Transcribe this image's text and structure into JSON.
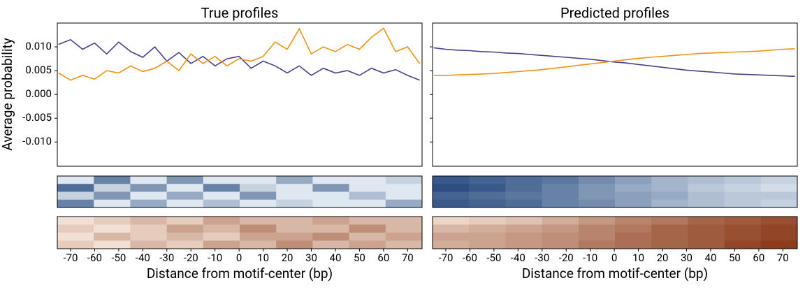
{
  "chart_data": [
    {
      "type": "line",
      "title": "True profiles",
      "ylabel": "Average probability",
      "xlabel": "Distance from motif-center (bp)",
      "xlim": [
        -75.5,
        76
      ],
      "xticks": [
        -70,
        -60,
        -50,
        -40,
        -30,
        -20,
        -10,
        0,
        10,
        20,
        30,
        40,
        50,
        60,
        70
      ],
      "ylim": [
        -0.0151,
        0.015
      ],
      "yticks": [
        {
          "value": -0.01,
          "label": "-0.010"
        },
        {
          "value": -0.005,
          "label": "-0.005"
        },
        {
          "value": 0,
          "label": "0.000"
        },
        {
          "value": 0.005,
          "label": "0.005"
        },
        {
          "value": 0.01,
          "label": "0.010"
        }
      ],
      "x": [
        -75,
        -70,
        -65,
        -60,
        -55,
        -50,
        -45,
        -40,
        -35,
        -30,
        -25,
        -20,
        -15,
        -10,
        -5,
        0,
        5,
        10,
        15,
        20,
        25,
        30,
        35,
        40,
        45,
        50,
        55,
        60,
        65,
        70,
        75
      ],
      "series": [
        {
          "color": "#4b3f8f",
          "values": [
            0.0105,
            0.0115,
            0.0095,
            0.0108,
            0.0085,
            0.011,
            0.009,
            0.0078,
            0.01,
            0.007,
            0.0088,
            0.0065,
            0.008,
            0.006,
            0.0075,
            0.008,
            0.0055,
            0.007,
            0.006,
            0.0045,
            0.006,
            0.004,
            0.0055,
            0.0045,
            0.005,
            0.004,
            0.0055,
            0.0045,
            0.0052,
            0.004,
            0.003
          ]
        },
        {
          "color": "#f39110",
          "values": [
            0.0045,
            0.003,
            0.004,
            0.0032,
            0.005,
            0.0045,
            0.006,
            0.0048,
            0.0055,
            0.007,
            0.005,
            0.0085,
            0.0065,
            0.008,
            0.006,
            0.0075,
            0.007,
            0.008,
            0.011,
            0.0095,
            0.0138,
            0.0085,
            0.01,
            0.009,
            0.0105,
            0.0095,
            0.012,
            0.0139,
            0.009,
            0.01,
            0.0065
          ]
        }
      ],
      "heatmaps": [
        {
          "colors": [
            "#f7fbff",
            "#08306b"
          ],
          "values": [
            [
              0.1,
              0.6,
              0.1,
              0.5,
              0.1,
              0.1,
              0.4,
              0.1,
              0.1,
              0.2
            ],
            [
              0.7,
              0.2,
              0.5,
              0.1,
              0.6,
              0.2,
              0.1,
              0.5,
              0.1,
              0.1
            ],
            [
              0.2,
              0.5,
              0.1,
              0.4,
              0.1,
              0.5,
              0.1,
              0.1,
              0.3,
              0.1
            ],
            [
              0.6,
              0.1,
              0.4,
              0.1,
              0.3,
              0.1,
              0.2,
              0.1,
              0.1,
              0.4
            ]
          ]
        },
        {
          "colors": [
            "#fff5eb",
            "#7f2704"
          ],
          "values": [
            [
              0.1,
              0.2,
              0.3,
              0.2,
              0.4,
              0.3,
              0.3,
              0.4,
              0.3,
              0.3
            ],
            [
              0.2,
              0.1,
              0.2,
              0.4,
              0.3,
              0.5,
              0.3,
              0.3,
              0.5,
              0.3
            ],
            [
              0.1,
              0.3,
              0.2,
              0.3,
              0.2,
              0.4,
              0.4,
              0.5,
              0.3,
              0.4
            ],
            [
              0.2,
              0.1,
              0.3,
              0.2,
              0.4,
              0.3,
              0.5,
              0.3,
              0.4,
              0.3
            ]
          ]
        }
      ]
    },
    {
      "type": "line",
      "title": "Predicted profiles",
      "xlabel": "Distance from motif-center (bp)",
      "xlim": [
        -75.5,
        76
      ],
      "xticks": [
        -70,
        -60,
        -50,
        -40,
        -30,
        -20,
        -10,
        0,
        10,
        20,
        30,
        40,
        50,
        60,
        70
      ],
      "ylim": [
        -0.0151,
        0.015
      ],
      "yticks": [
        -0.01,
        -0.005,
        0,
        0.005,
        0.01
      ],
      "x": [
        -75,
        -70,
        -65,
        -60,
        -55,
        -50,
        -45,
        -40,
        -35,
        -30,
        -25,
        -20,
        -15,
        -10,
        -5,
        0,
        5,
        10,
        15,
        20,
        25,
        30,
        35,
        40,
        45,
        50,
        55,
        60,
        65,
        70,
        75
      ],
      "series": [
        {
          "color": "#4b3f8f",
          "values": [
            0.0098,
            0.0095,
            0.0093,
            0.0092,
            0.009,
            0.0089,
            0.0087,
            0.0086,
            0.0084,
            0.0082,
            0.008,
            0.0078,
            0.0076,
            0.0074,
            0.0071,
            0.0068,
            0.0066,
            0.0063,
            0.006,
            0.0057,
            0.0054,
            0.0051,
            0.0049,
            0.0047,
            0.0045,
            0.0043,
            0.0042,
            0.0041,
            0.004,
            0.0039,
            0.0038
          ]
        },
        {
          "color": "#f39110",
          "values": [
            0.004,
            0.004,
            0.0041,
            0.0042,
            0.0043,
            0.0044,
            0.0046,
            0.0048,
            0.005,
            0.0052,
            0.0055,
            0.0058,
            0.0061,
            0.0064,
            0.0067,
            0.007,
            0.0073,
            0.0076,
            0.0078,
            0.008,
            0.0082,
            0.0084,
            0.0086,
            0.0087,
            0.0088,
            0.0089,
            0.009,
            0.0091,
            0.0093,
            0.0095,
            0.0096
          ]
        }
      ],
      "heatmaps": [
        {
          "colors": [
            "#f7fbff",
            "#08306b"
          ],
          "values": [
            [
              0.8,
              0.75,
              0.7,
              0.65,
              0.55,
              0.45,
              0.35,
              0.3,
              0.25,
              0.2
            ],
            [
              0.85,
              0.8,
              0.7,
              0.6,
              0.5,
              0.4,
              0.35,
              0.25,
              0.2,
              0.15
            ],
            [
              0.75,
              0.7,
              0.65,
              0.6,
              0.5,
              0.45,
              0.4,
              0.3,
              0.25,
              0.25
            ],
            [
              0.8,
              0.75,
              0.7,
              0.6,
              0.55,
              0.45,
              0.35,
              0.3,
              0.25,
              0.2
            ]
          ]
        },
        {
          "colors": [
            "#fff5eb",
            "#7f2704"
          ],
          "values": [
            [
              0.15,
              0.2,
              0.25,
              0.35,
              0.45,
              0.55,
              0.6,
              0.7,
              0.75,
              0.8
            ],
            [
              0.3,
              0.35,
              0.4,
              0.45,
              0.55,
              0.6,
              0.7,
              0.75,
              0.8,
              0.85
            ],
            [
              0.4,
              0.4,
              0.45,
              0.5,
              0.55,
              0.65,
              0.7,
              0.75,
              0.8,
              0.85
            ],
            [
              0.35,
              0.4,
              0.45,
              0.5,
              0.6,
              0.65,
              0.7,
              0.75,
              0.85,
              0.9
            ]
          ]
        }
      ]
    }
  ]
}
